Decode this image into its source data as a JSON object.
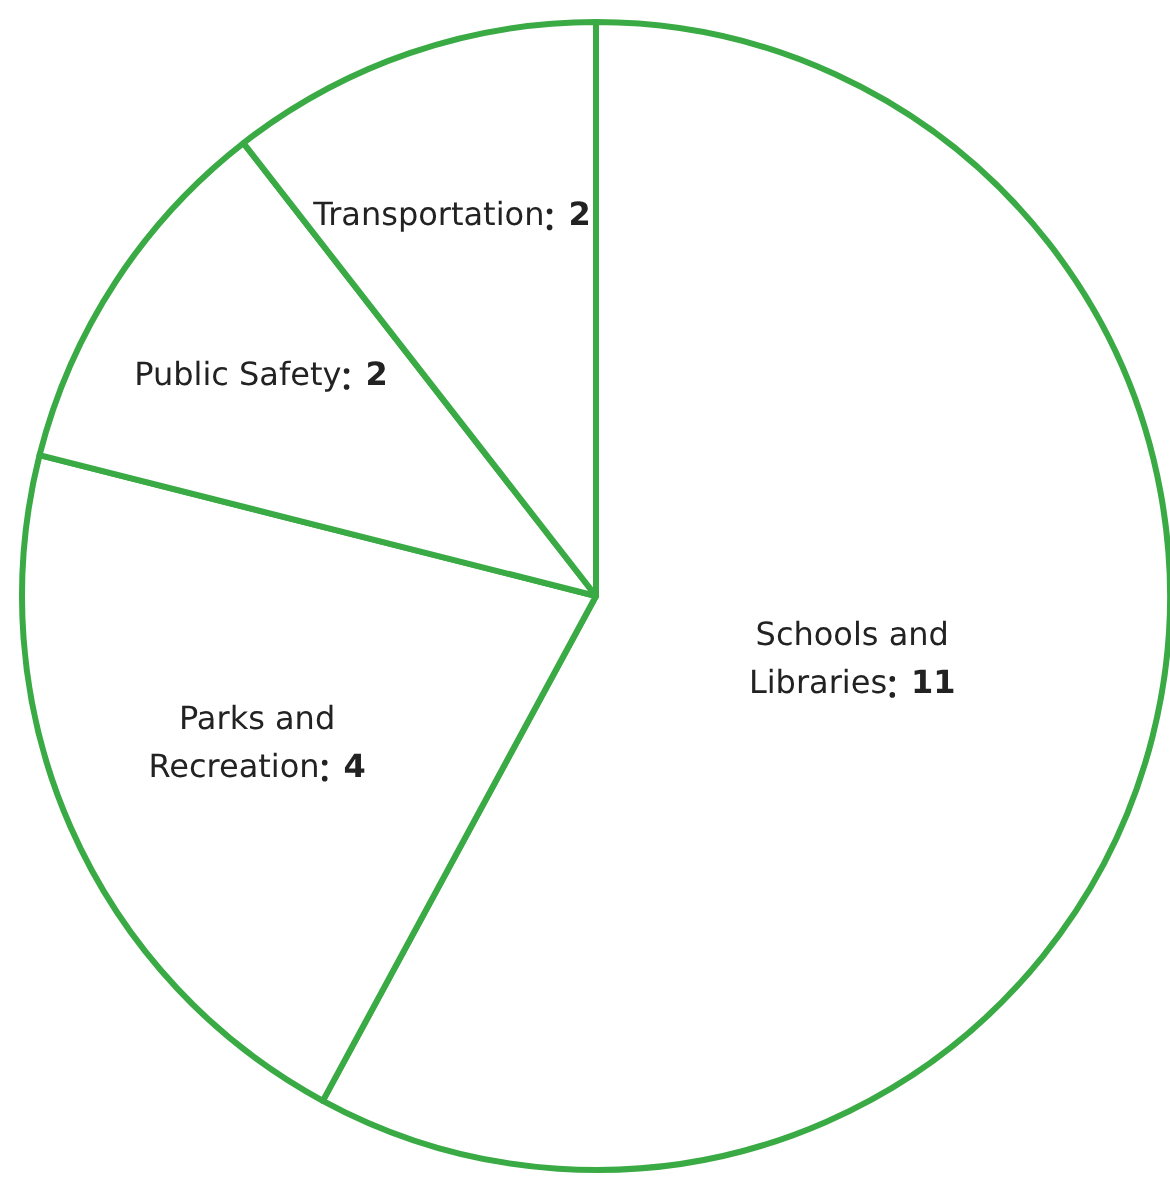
{
  "chart_data": {
    "type": "pie",
    "categories": [
      "Schools and Libraries",
      "Parks and Recreation",
      "Public Safety",
      "Transportation"
    ],
    "values": [
      11,
      4,
      2,
      2
    ],
    "colors": [
      "#ffffff",
      "#ffffff",
      "#ffffff",
      "#ffffff"
    ],
    "color": "#3aaa45",
    "data_labels": true
  }
}
